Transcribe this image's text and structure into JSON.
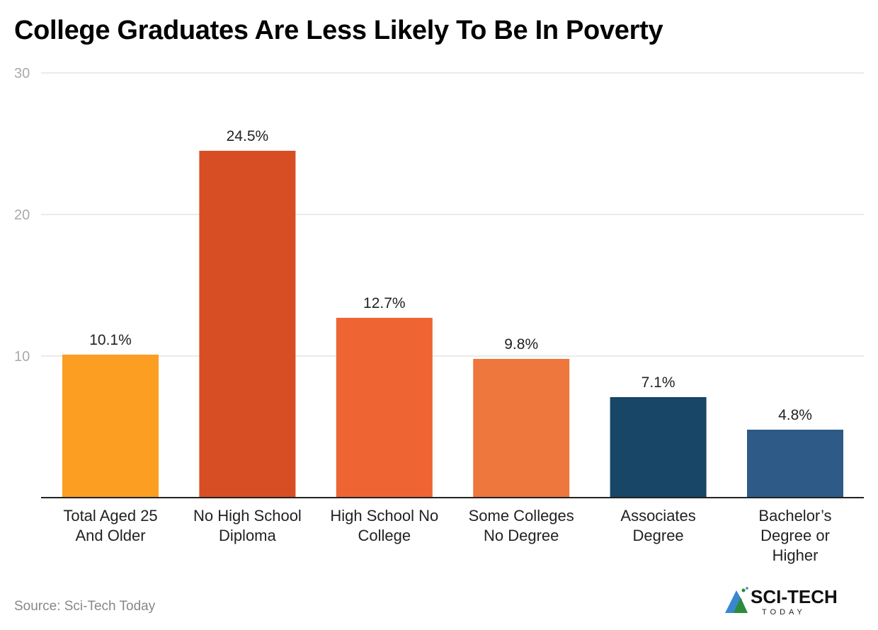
{
  "title": "College Graduates Are Less Likely To Be In Poverty",
  "source": "Source: Sci-Tech Today",
  "logo": {
    "main": "SCI-TECH",
    "sub": "TODAY"
  },
  "chart_data": {
    "type": "bar",
    "title": "College Graduates Are Less Likely To Be In Poverty",
    "xlabel": "",
    "ylabel": "",
    "ylim": [
      0,
      30
    ],
    "yticks": [
      10,
      20,
      30
    ],
    "grid": true,
    "categories": [
      [
        "Total Aged 25",
        "And Older"
      ],
      [
        "No High School",
        "Diploma"
      ],
      [
        "High School No",
        "College"
      ],
      [
        "Some Colleges",
        "No Degree"
      ],
      [
        "Associates",
        "Degree"
      ],
      [
        "Bachelor’s",
        "Degree or",
        "Higher"
      ]
    ],
    "values": [
      10.1,
      24.5,
      12.7,
      9.8,
      7.1,
      4.8
    ],
    "labels": [
      "10.1%",
      "24.5%",
      "12.7%",
      "9.8%",
      "7.1%",
      "4.8%"
    ],
    "colors": [
      "#FB9E22",
      "#D84E24",
      "#EE6533",
      "#EE773D",
      "#174666",
      "#2D5A86"
    ]
  }
}
